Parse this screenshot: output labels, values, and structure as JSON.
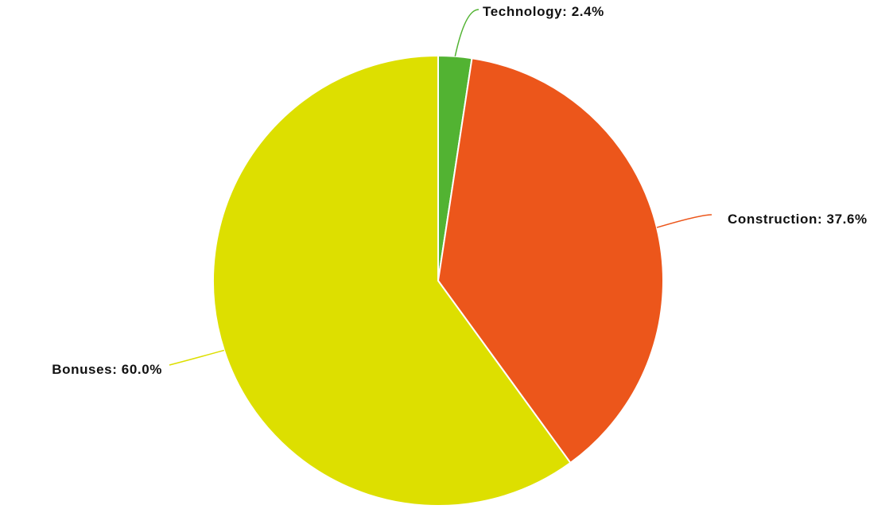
{
  "chart_data": {
    "type": "pie",
    "title": "",
    "slices": [
      {
        "label": "Technology",
        "value": 2.4,
        "display": "Technology: 2.4%",
        "color": "#52b332"
      },
      {
        "label": "Construction",
        "value": 37.6,
        "display": "Construction: 37.6%",
        "color": "#ec561b"
      },
      {
        "label": "Bonuses",
        "value": 60.0,
        "display": "Bonuses: 60.0%",
        "color": "#dddf00"
      }
    ],
    "start": "12 o'clock",
    "direction": "clockwise",
    "legend": "none",
    "data_labels": "outside with leader lines"
  }
}
